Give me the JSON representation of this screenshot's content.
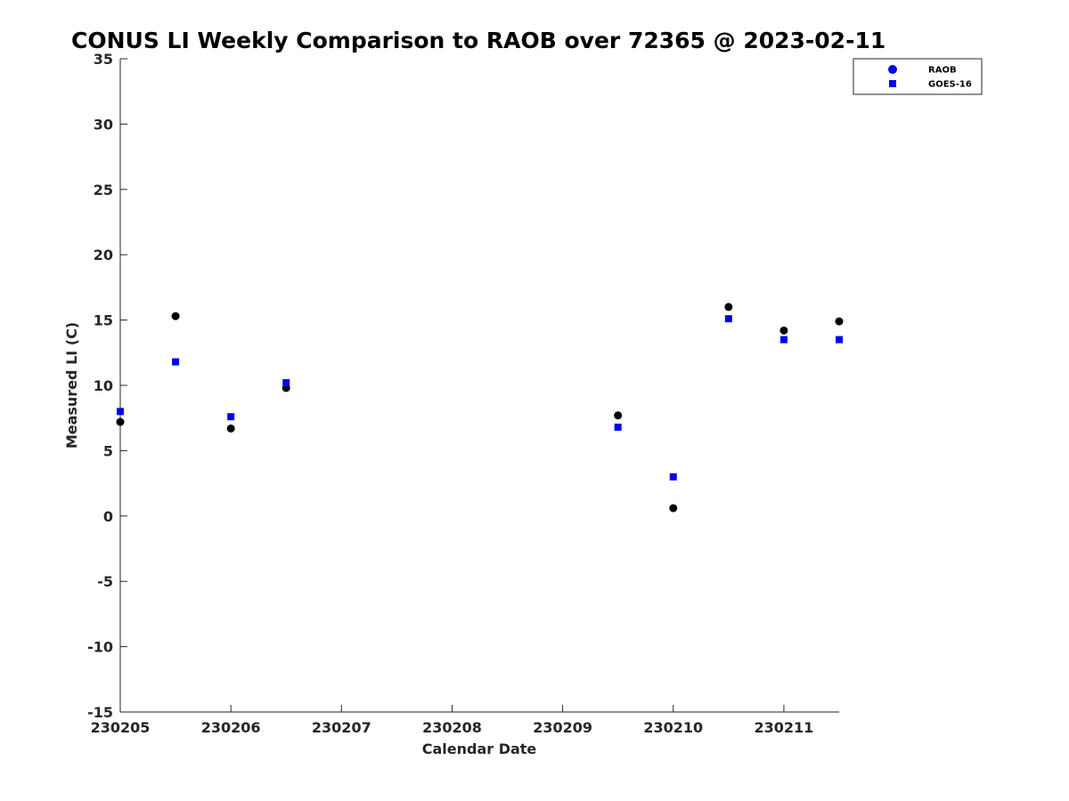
{
  "chart_data": {
    "type": "scatter",
    "title": "CONUS LI Weekly Comparison to RAOB over 72365 @ 2023-02-11",
    "xlabel": "Calendar Date",
    "ylabel": "Measured LI (C)",
    "x_ticks": [
      "230205",
      "230206",
      "230207",
      "230208",
      "230209",
      "230210",
      "230211"
    ],
    "xlim": [
      230205,
      230211.5
    ],
    "y_ticks": [
      "35",
      "30",
      "25",
      "20",
      "15",
      "10",
      "5",
      "0",
      "-5",
      "-10",
      "-15"
    ],
    "ylim": [
      -15,
      35
    ],
    "grid": false,
    "legend_position": "top-right",
    "series": [
      {
        "name": "RAOB",
        "marker": "circle",
        "color": "#000000",
        "legend_color": "#0000ee",
        "x": [
          230205,
          230205.5,
          230206,
          230206.5,
          230209.5,
          230210,
          230210.5,
          230211,
          230211.5
        ],
        "y": [
          7.2,
          15.3,
          6.7,
          9.8,
          7.7,
          0.6,
          16.0,
          14.2,
          14.9
        ]
      },
      {
        "name": "GOES-16",
        "marker": "square",
        "color": "#0000ee",
        "legend_color": "#0000ee",
        "x": [
          230205,
          230205.5,
          230206,
          230206.5,
          230209.5,
          230210,
          230210.5,
          230211,
          230211.5
        ],
        "y": [
          8.0,
          11.8,
          7.6,
          10.2,
          6.8,
          3.0,
          15.1,
          13.5,
          13.5
        ]
      }
    ]
  }
}
